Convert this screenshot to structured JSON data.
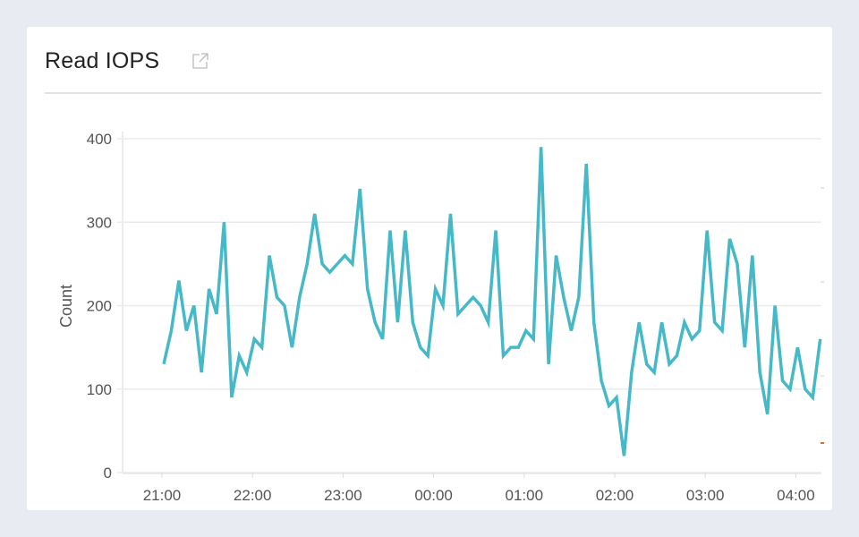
{
  "card": {
    "title": "Read IOPS",
    "icon": "external-link-icon"
  },
  "chart_data": {
    "type": "line",
    "title": "Read IOPS",
    "xlabel": "",
    "ylabel": "Count",
    "ylim": [
      0,
      400
    ],
    "yticks": [
      0,
      100,
      200,
      300,
      400
    ],
    "xticks": [
      "21:00",
      "22:00",
      "23:00",
      "00:00",
      "01:00",
      "02:00",
      "03:00",
      "04:00"
    ],
    "x_start": "21:00",
    "x_interval_minutes": 5,
    "grid": true,
    "line_color": "#45b9c8",
    "series": [
      {
        "values": [
          130,
          170,
          230,
          170,
          200,
          120,
          220,
          190,
          300,
          90,
          140,
          120,
          160,
          150,
          260,
          210,
          200,
          150,
          210,
          250,
          310,
          250,
          240,
          250,
          260,
          250,
          340,
          220,
          180,
          160,
          290,
          180,
          290,
          180,
          150,
          140,
          220,
          200,
          310,
          190,
          200,
          210,
          200,
          180,
          290,
          140,
          150,
          150,
          170,
          160,
          390,
          130,
          260,
          210,
          170,
          210,
          370,
          180,
          110,
          80,
          90,
          20,
          120,
          180,
          130,
          120,
          180,
          130,
          140,
          180,
          160,
          170,
          290,
          180,
          170,
          280,
          250,
          150,
          260,
          120,
          70,
          200,
          110,
          100,
          150,
          100,
          90,
          160
        ]
      }
    ]
  }
}
